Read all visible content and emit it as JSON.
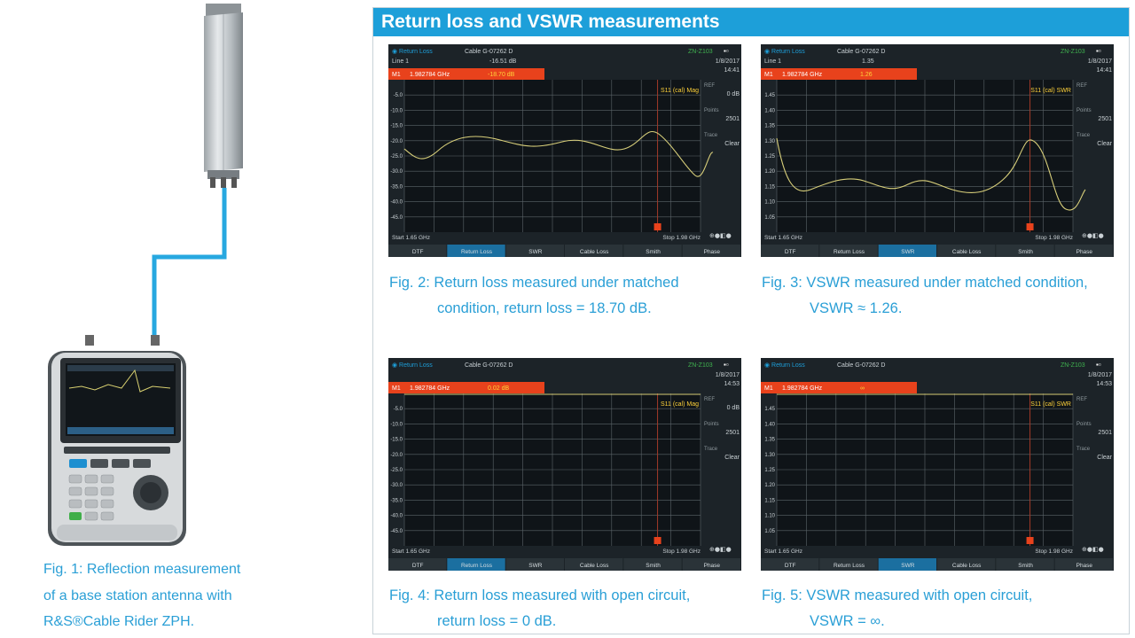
{
  "header": {
    "title": "Return loss and VSWR measurements"
  },
  "figure1": {
    "caption_line1": "Fig. 1: Reflection measurement",
    "caption_line2": "of a base station antenna with",
    "caption_line3": "R&S®Cable Rider ZPH."
  },
  "screen_common": {
    "mode": "Return Loss",
    "cable": "Cable G-07262 D",
    "device": "ZN-Z103",
    "date": "1/8/2017",
    "start": "Start 1.65 GHz",
    "stop": "Stop 1.98 GHz",
    "marker_label": "M1",
    "marker_freq": "1.982784 GHz",
    "side_ref": "REF",
    "side_points_label": "Points",
    "side_points_value": "2501",
    "side_trace_label": "Trace",
    "side_trace_value": "Clear",
    "tabs": [
      "DTF",
      "Return Loss",
      "SWR",
      "Cable Loss",
      "Smith",
      "Phase"
    ]
  },
  "screens": [
    {
      "id": "fig2",
      "line_label": "Line 1",
      "line_value": "-16.51 dB",
      "time": "14:41",
      "marker_value": "-18.70 dB",
      "trace_label": "S11 (cal) Mag",
      "ref_value": "0 dB",
      "y_ticks": [
        "-5.0",
        "-10.0",
        "-15.0",
        "-20.0",
        "-25.0",
        "-30.0",
        "-35.0",
        "-40.0",
        "-45.0"
      ],
      "active_tab": 1,
      "caption_line1": "Fig. 2: Return loss measured under matched",
      "caption_line2": "condition, return loss = 18.70 dB."
    },
    {
      "id": "fig3",
      "line_label": "Line 1",
      "line_value": "1.35",
      "time": "14:41",
      "marker_value": "1.26",
      "trace_label": "S11 (cal) SWR",
      "ref_value": "",
      "y_ticks": [
        "1.45",
        "1.40",
        "1.35",
        "1.30",
        "1.25",
        "1.20",
        "1.15",
        "1.10",
        "1.05"
      ],
      "active_tab": 2,
      "caption_line1": "Fig. 3: VSWR measured under matched condition,",
      "caption_line2": "VSWR ≈ 1.26."
    },
    {
      "id": "fig4",
      "line_label": "",
      "line_value": "",
      "time": "14:53",
      "marker_value": "0.02 dB",
      "trace_label": "S11 (cal) Mag",
      "ref_value": "0 dB",
      "y_ticks": [
        "-5.0",
        "-10.0",
        "-15.0",
        "-20.0",
        "-25.0",
        "-30.0",
        "-35.0",
        "-40.0",
        "-45.0"
      ],
      "active_tab": 1,
      "caption_line1": "Fig. 4: Return loss measured with open circuit,",
      "caption_line2": "return loss = 0 dB."
    },
    {
      "id": "fig5",
      "line_label": "",
      "line_value": "",
      "time": "14:53",
      "marker_value": "∞",
      "trace_label": "S11 (cal) SWR",
      "ref_value": "",
      "y_ticks": [
        "1.45",
        "1.40",
        "1.35",
        "1.30",
        "1.25",
        "1.20",
        "1.15",
        "1.10",
        "1.05"
      ],
      "active_tab": 2,
      "caption_line1": "Fig. 5: VSWR measured with open circuit,",
      "caption_line2": "VSWR = ∞."
    }
  ]
}
